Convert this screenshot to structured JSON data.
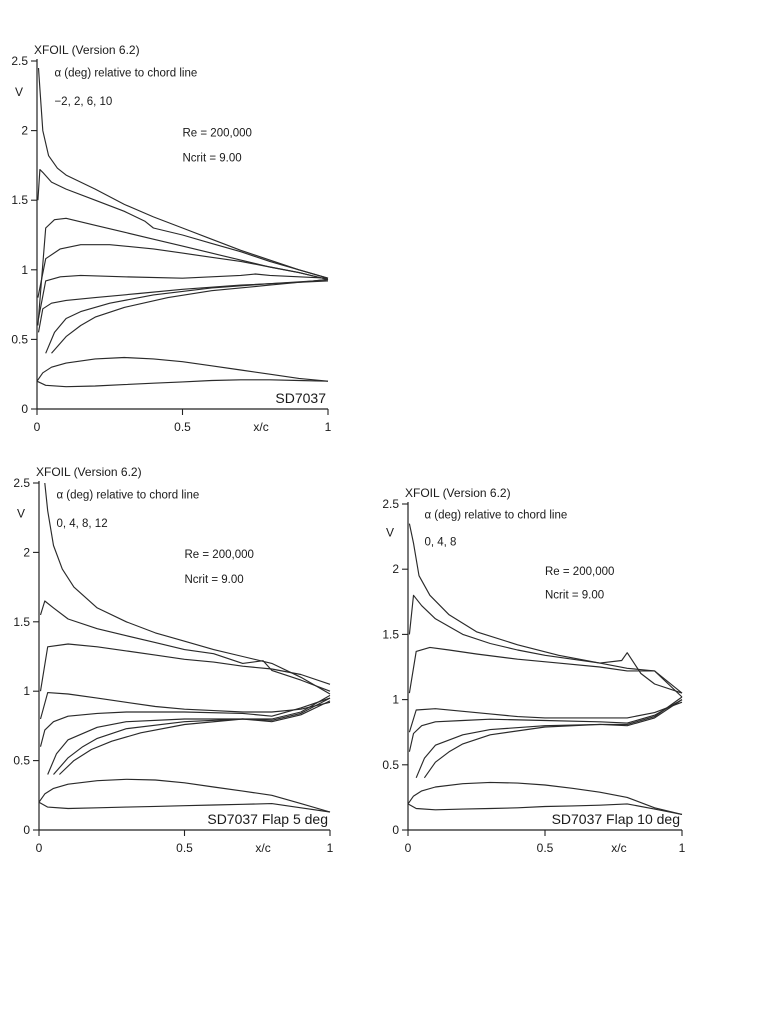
{
  "chart_data": [
    {
      "type": "line",
      "header": "XFOIL (Version 6.2)",
      "alpha_label": "α (deg) relative to chord line",
      "alpha_values": "−2, 2, 6, 10",
      "re_label": "Re = 200,000",
      "ncrit_label": "Ncrit = 9.00",
      "airfoil_label": "SD7037",
      "ylabel": "V",
      "xlabel": "x/c",
      "xlim": [
        0,
        1
      ],
      "ylim": [
        0,
        2.5
      ],
      "xticks": [
        "0",
        "0.5",
        "1"
      ],
      "yticks": [
        "0",
        "0.5",
        "1",
        "1.5",
        "2",
        "2.5"
      ],
      "series": [
        {
          "name": "upper a10",
          "x": [
            0.005,
            0.01,
            0.02,
            0.04,
            0.07,
            0.1,
            0.2,
            0.3,
            0.4,
            0.5,
            0.6,
            0.7,
            0.8,
            0.9,
            1.0
          ],
          "y": [
            2.45,
            2.3,
            2.0,
            1.82,
            1.73,
            1.68,
            1.58,
            1.47,
            1.38,
            1.3,
            1.22,
            1.14,
            1.07,
            1.0,
            0.94
          ]
        },
        {
          "name": "upper a6",
          "x": [
            0.003,
            0.01,
            0.02,
            0.05,
            0.1,
            0.2,
            0.3,
            0.37,
            0.4,
            0.5,
            0.6,
            0.7,
            0.8,
            0.9,
            1.0
          ],
          "y": [
            1.5,
            1.72,
            1.7,
            1.63,
            1.58,
            1.5,
            1.42,
            1.35,
            1.3,
            1.25,
            1.19,
            1.13,
            1.06,
            1.0,
            0.94
          ]
        },
        {
          "name": "upper a2",
          "x": [
            0.003,
            0.03,
            0.06,
            0.1,
            0.2,
            0.3,
            0.4,
            0.5,
            0.6,
            0.7,
            0.8,
            0.9,
            1.0
          ],
          "y": [
            0.6,
            1.3,
            1.36,
            1.37,
            1.32,
            1.27,
            1.22,
            1.17,
            1.12,
            1.07,
            1.02,
            0.98,
            0.93
          ]
        },
        {
          "name": "upper a-2",
          "x": [
            0.003,
            0.03,
            0.08,
            0.15,
            0.25,
            0.4,
            0.5,
            0.6,
            0.7,
            0.8,
            0.9,
            1.0
          ],
          "y": [
            0.8,
            1.08,
            1.15,
            1.18,
            1.18,
            1.15,
            1.12,
            1.09,
            1.06,
            1.02,
            0.98,
            0.93
          ]
        },
        {
          "name": "mid a-2",
          "x": [
            0.005,
            0.03,
            0.08,
            0.15,
            0.3,
            0.5,
            0.6,
            0.7,
            0.75,
            0.8,
            0.9,
            1.0
          ],
          "y": [
            0.65,
            0.92,
            0.95,
            0.96,
            0.95,
            0.94,
            0.95,
            0.96,
            0.97,
            0.96,
            0.95,
            0.94
          ]
        },
        {
          "name": "lower a2",
          "x": [
            0.005,
            0.02,
            0.05,
            0.1,
            0.2,
            0.35,
            0.5,
            0.7,
            0.9,
            1.0
          ],
          "y": [
            0.55,
            0.72,
            0.76,
            0.78,
            0.8,
            0.83,
            0.86,
            0.89,
            0.91,
            0.92
          ]
        },
        {
          "name": "lower a6",
          "x": [
            0.03,
            0.06,
            0.1,
            0.15,
            0.25,
            0.4,
            0.6,
            0.8,
            0.95,
            1.0
          ],
          "y": [
            0.4,
            0.55,
            0.65,
            0.7,
            0.76,
            0.82,
            0.87,
            0.9,
            0.92,
            0.93
          ]
        },
        {
          "name": "lower a10",
          "x": [
            0.05,
            0.1,
            0.15,
            0.2,
            0.3,
            0.45,
            0.6,
            0.8,
            0.95,
            1.0
          ],
          "y": [
            0.4,
            0.52,
            0.6,
            0.66,
            0.73,
            0.8,
            0.85,
            0.89,
            0.92,
            0.93
          ]
        }
      ],
      "airfoil": {
        "upper_x": [
          0,
          0.02,
          0.05,
          0.1,
          0.2,
          0.3,
          0.4,
          0.5,
          0.6,
          0.7,
          0.8,
          0.9,
          1.0
        ],
        "upper_y": [
          0.2,
          0.26,
          0.3,
          0.33,
          0.36,
          0.37,
          0.36,
          0.34,
          0.31,
          0.28,
          0.25,
          0.22,
          0.2
        ],
        "lower_x": [
          0,
          0.03,
          0.1,
          0.2,
          0.3,
          0.4,
          0.5,
          0.6,
          0.7,
          0.8,
          0.9,
          1.0
        ],
        "lower_y": [
          0.2,
          0.17,
          0.16,
          0.165,
          0.175,
          0.185,
          0.195,
          0.205,
          0.21,
          0.21,
          0.205,
          0.2
        ]
      }
    },
    {
      "type": "line",
      "header": "XFOIL (Version 6.2)",
      "alpha_label": "α (deg) relative to chord line",
      "alpha_values": "0, 4, 8, 12",
      "re_label": "Re = 200,000",
      "ncrit_label": "Ncrit = 9.00",
      "airfoil_label": "SD7037 Flap 5 deg",
      "ylabel": "V",
      "xlabel": "x/c",
      "xlim": [
        0,
        1
      ],
      "ylim": [
        0,
        2.5
      ],
      "xticks": [
        "0",
        "0.5",
        "1"
      ],
      "yticks": [
        "0",
        "0.5",
        "1",
        "1.5",
        "2",
        "2.5"
      ],
      "series": [
        {
          "name": "upper a12",
          "x": [
            0.02,
            0.03,
            0.05,
            0.08,
            0.12,
            0.2,
            0.3,
            0.4,
            0.5,
            0.6,
            0.7,
            0.8,
            0.9,
            1.0
          ],
          "y": [
            2.5,
            2.3,
            2.05,
            1.88,
            1.75,
            1.6,
            1.5,
            1.42,
            1.36,
            1.3,
            1.25,
            1.2,
            1.1,
            0.98
          ]
        },
        {
          "name": "upper a8",
          "x": [
            0.005,
            0.02,
            0.05,
            0.1,
            0.2,
            0.3,
            0.4,
            0.5,
            0.6,
            0.7,
            0.77,
            0.8,
            0.9,
            1.0
          ],
          "y": [
            1.55,
            1.65,
            1.6,
            1.52,
            1.45,
            1.4,
            1.35,
            1.3,
            1.27,
            1.2,
            1.22,
            1.15,
            1.08,
            1.0
          ]
        },
        {
          "name": "upper a4",
          "x": [
            0.005,
            0.03,
            0.1,
            0.2,
            0.3,
            0.4,
            0.5,
            0.6,
            0.7,
            0.8,
            0.9,
            1.0
          ],
          "y": [
            1.0,
            1.32,
            1.34,
            1.32,
            1.29,
            1.26,
            1.23,
            1.21,
            1.18,
            1.16,
            1.12,
            1.05
          ]
        },
        {
          "name": "upper a0",
          "x": [
            0.005,
            0.03,
            0.1,
            0.2,
            0.3,
            0.4,
            0.5,
            0.6,
            0.7,
            0.8,
            0.9,
            1.0
          ],
          "y": [
            0.8,
            0.99,
            0.98,
            0.95,
            0.92,
            0.89,
            0.87,
            0.86,
            0.85,
            0.85,
            0.87,
            0.92
          ]
        },
        {
          "name": "lower a0",
          "x": [
            0.005,
            0.02,
            0.05,
            0.1,
            0.2,
            0.3,
            0.5,
            0.7,
            0.8,
            0.9,
            1.0
          ],
          "y": [
            0.6,
            0.72,
            0.78,
            0.82,
            0.84,
            0.85,
            0.85,
            0.84,
            0.82,
            0.88,
            0.95
          ]
        },
        {
          "name": "lower a4",
          "x": [
            0.03,
            0.06,
            0.1,
            0.2,
            0.3,
            0.5,
            0.7,
            0.8,
            0.9,
            1.0
          ],
          "y": [
            0.4,
            0.55,
            0.65,
            0.74,
            0.78,
            0.8,
            0.8,
            0.78,
            0.83,
            0.93
          ]
        },
        {
          "name": "lower a8",
          "x": [
            0.05,
            0.1,
            0.15,
            0.2,
            0.3,
            0.5,
            0.7,
            0.8,
            0.9,
            1.0
          ],
          "y": [
            0.4,
            0.52,
            0.6,
            0.66,
            0.73,
            0.78,
            0.8,
            0.79,
            0.84,
            0.95
          ]
        },
        {
          "name": "lower a12",
          "x": [
            0.07,
            0.12,
            0.18,
            0.25,
            0.35,
            0.5,
            0.7,
            0.8,
            0.9,
            1.0
          ],
          "y": [
            0.4,
            0.5,
            0.58,
            0.64,
            0.7,
            0.76,
            0.8,
            0.8,
            0.85,
            0.97
          ]
        }
      ],
      "airfoil": {
        "upper_x": [
          0,
          0.02,
          0.05,
          0.1,
          0.2,
          0.3,
          0.4,
          0.5,
          0.6,
          0.7,
          0.8,
          0.9,
          1.0
        ],
        "upper_y": [
          0.2,
          0.26,
          0.3,
          0.33,
          0.355,
          0.365,
          0.36,
          0.34,
          0.31,
          0.28,
          0.25,
          0.19,
          0.13
        ],
        "lower_x": [
          0,
          0.03,
          0.1,
          0.2,
          0.3,
          0.4,
          0.5,
          0.6,
          0.7,
          0.8,
          0.9,
          1.0
        ],
        "lower_y": [
          0.2,
          0.165,
          0.155,
          0.16,
          0.165,
          0.17,
          0.175,
          0.18,
          0.185,
          0.19,
          0.16,
          0.13
        ]
      }
    },
    {
      "type": "line",
      "header": "XFOIL (Version 6.2)",
      "alpha_label": "α (deg) relative to chord line",
      "alpha_values": "0, 4, 8",
      "re_label": "Re = 200,000",
      "ncrit_label": "Ncrit = 9.00",
      "airfoil_label": "SD7037 Flap 10 deg",
      "ylabel": "V",
      "xlabel": "x/c",
      "xlim": [
        0,
        1
      ],
      "ylim": [
        0,
        2.5
      ],
      "xticks": [
        "0",
        "0.5",
        "1"
      ],
      "yticks": [
        "0",
        "0.5",
        "1",
        "1.5",
        "2",
        "2.5"
      ],
      "series": [
        {
          "name": "upper a8",
          "x": [
            0.005,
            0.02,
            0.04,
            0.08,
            0.15,
            0.25,
            0.4,
            0.55,
            0.7,
            0.78,
            0.8,
            0.85,
            0.9,
            1.0
          ],
          "y": [
            2.35,
            2.2,
            1.95,
            1.8,
            1.65,
            1.52,
            1.42,
            1.34,
            1.28,
            1.3,
            1.36,
            1.2,
            1.12,
            1.05
          ]
        },
        {
          "name": "upper a4",
          "x": [
            0.005,
            0.02,
            0.05,
            0.1,
            0.2,
            0.3,
            0.4,
            0.5,
            0.6,
            0.7,
            0.8,
            0.9,
            1.0
          ],
          "y": [
            1.5,
            1.8,
            1.72,
            1.62,
            1.5,
            1.43,
            1.38,
            1.34,
            1.31,
            1.28,
            1.24,
            1.22,
            1.05
          ]
        },
        {
          "name": "upper a0",
          "x": [
            0.005,
            0.03,
            0.08,
            0.15,
            0.25,
            0.4,
            0.55,
            0.7,
            0.8,
            0.9,
            1.0
          ],
          "y": [
            1.05,
            1.37,
            1.4,
            1.38,
            1.35,
            1.31,
            1.28,
            1.25,
            1.22,
            1.22,
            1.02
          ]
        },
        {
          "name": "mid a0",
          "x": [
            0.005,
            0.03,
            0.1,
            0.2,
            0.3,
            0.4,
            0.5,
            0.6,
            0.7,
            0.8,
            0.9,
            1.0
          ],
          "y": [
            0.75,
            0.92,
            0.93,
            0.91,
            0.89,
            0.87,
            0.86,
            0.86,
            0.86,
            0.86,
            0.9,
            0.98
          ]
        },
        {
          "name": "lower a0",
          "x": [
            0.005,
            0.02,
            0.05,
            0.1,
            0.2,
            0.3,
            0.5,
            0.7,
            0.8,
            0.9,
            1.0
          ],
          "y": [
            0.6,
            0.74,
            0.8,
            0.83,
            0.84,
            0.85,
            0.84,
            0.83,
            0.82,
            0.88,
            1.0
          ]
        },
        {
          "name": "lower a4",
          "x": [
            0.03,
            0.06,
            0.1,
            0.2,
            0.3,
            0.5,
            0.7,
            0.8,
            0.9,
            1.0
          ],
          "y": [
            0.4,
            0.55,
            0.65,
            0.73,
            0.77,
            0.8,
            0.81,
            0.8,
            0.86,
            1.0
          ]
        },
        {
          "name": "lower a8",
          "x": [
            0.06,
            0.1,
            0.15,
            0.2,
            0.3,
            0.5,
            0.7,
            0.8,
            0.9,
            1.0
          ],
          "y": [
            0.4,
            0.52,
            0.6,
            0.66,
            0.73,
            0.79,
            0.81,
            0.81,
            0.87,
            1.02
          ]
        }
      ],
      "airfoil": {
        "upper_x": [
          0,
          0.02,
          0.05,
          0.1,
          0.2,
          0.3,
          0.4,
          0.5,
          0.6,
          0.7,
          0.8,
          0.9,
          1.0
        ],
        "upper_y": [
          0.2,
          0.26,
          0.3,
          0.33,
          0.355,
          0.365,
          0.36,
          0.345,
          0.32,
          0.29,
          0.25,
          0.17,
          0.12
        ],
        "lower_x": [
          0,
          0.03,
          0.1,
          0.2,
          0.3,
          0.4,
          0.5,
          0.6,
          0.7,
          0.8,
          0.9,
          1.0
        ],
        "lower_y": [
          0.2,
          0.165,
          0.155,
          0.16,
          0.165,
          0.17,
          0.18,
          0.185,
          0.19,
          0.2,
          0.16,
          0.12
        ]
      }
    }
  ]
}
